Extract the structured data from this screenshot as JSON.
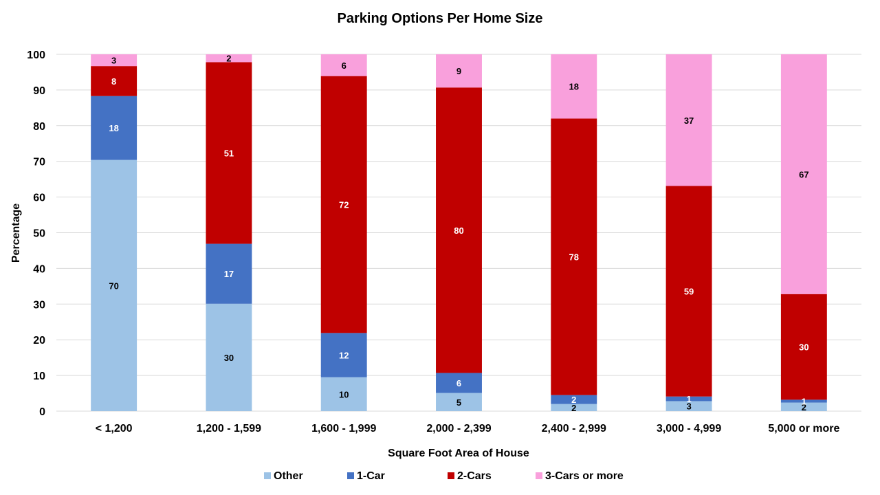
{
  "chart_data": {
    "type": "bar",
    "stacked": true,
    "title": "Parking Options Per Home Size",
    "xlabel": "Square Foot Area of House",
    "ylabel": "Percentage",
    "ylim": [
      0,
      100
    ],
    "yticks": [
      0,
      10,
      20,
      30,
      40,
      50,
      60,
      70,
      80,
      90,
      100
    ],
    "grid": true,
    "legend_position": "bottom",
    "categories": [
      "< 1,200",
      "1,200 - 1,599",
      "1,600 - 1,999",
      "2,000 - 2,399",
      "2,400 - 2,999",
      "3,000 - 4,999",
      "5,000 or more"
    ],
    "series": [
      {
        "name": "Other",
        "color": "#9dc3e6",
        "label_color": "#000000",
        "values": [
          70.4,
          30.1,
          9.5,
          5.1,
          2.0,
          2.8,
          2.4
        ],
        "labels": [
          "70",
          "30",
          "10",
          "5",
          "2",
          "3",
          "2"
        ]
      },
      {
        "name": "1-Car",
        "color": "#4472c4",
        "label_color": "#ffffff",
        "values": [
          17.9,
          16.8,
          12.4,
          5.6,
          2.5,
          1.3,
          0.8
        ],
        "labels": [
          "18",
          "17",
          "12",
          "6",
          "2",
          "1",
          "1"
        ]
      },
      {
        "name": "2-Cars",
        "color": "#c00000",
        "label_color": "#ffffff",
        "values": [
          8.4,
          50.9,
          72.0,
          80.0,
          77.5,
          59.0,
          29.6
        ],
        "labels": [
          "8",
          "51",
          "72",
          "80",
          "78",
          "59",
          "30"
        ]
      },
      {
        "name": "3-Cars or more",
        "color": "#f9a0dc",
        "label_color": "#000000",
        "values": [
          3.3,
          2.2,
          6.1,
          9.3,
          18.0,
          36.9,
          67.2
        ],
        "labels": [
          "3",
          "2",
          "6",
          "9",
          "18",
          "37",
          "67"
        ]
      }
    ]
  }
}
